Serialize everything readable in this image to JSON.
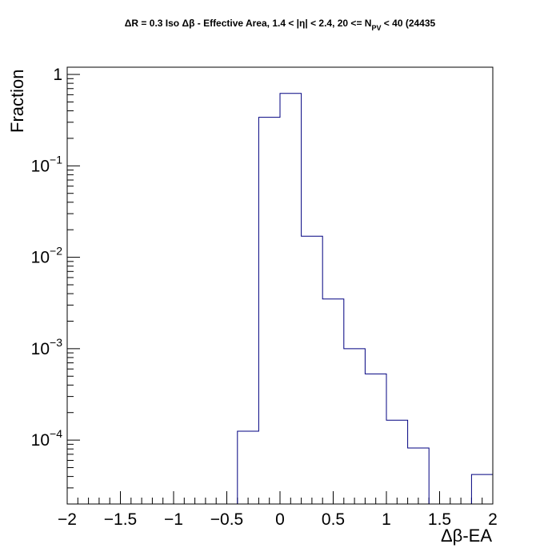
{
  "chart_data": {
    "type": "histogram",
    "title": "ΔR = 0.3 Iso Δβ - Effective Area, 1.4 < |η| < 2.4, 20 <= N",
    "title_sub": "PV",
    "title_tail": " < 40 (24435",
    "xlabel": "Δβ-EA",
    "ylabel": "Fraction",
    "xlim": [
      -2,
      2
    ],
    "ylim": [
      2e-05,
      1.2
    ],
    "y_scale": "log",
    "grid": false,
    "legend": "none",
    "line_color": "#000080",
    "x_ticks": [
      -2,
      -1.5,
      -1,
      -0.5,
      0,
      0.5,
      1,
      1.5,
      2
    ],
    "x_tick_labels": [
      "−2",
      "−1.5",
      "−1",
      "−0.5",
      "0",
      "0.5",
      "1",
      "1.5",
      "2"
    ],
    "y_ticks": [
      {
        "value": 1,
        "base": "1",
        "exp": ""
      },
      {
        "value": 0.1,
        "base": "10",
        "exp": "−1"
      },
      {
        "value": 0.01,
        "base": "10",
        "exp": "−2"
      },
      {
        "value": 0.001,
        "base": "10",
        "exp": "−3"
      },
      {
        "value": 0.0001,
        "base": "10",
        "exp": "−4"
      }
    ],
    "bins": [
      {
        "x0": -0.4,
        "x1": -0.2,
        "y": 0.000125
      },
      {
        "x0": -0.2,
        "x1": 0.0,
        "y": 0.34
      },
      {
        "x0": 0.0,
        "x1": 0.2,
        "y": 0.62
      },
      {
        "x0": 0.2,
        "x1": 0.4,
        "y": 0.017
      },
      {
        "x0": 0.4,
        "x1": 0.6,
        "y": 0.0035
      },
      {
        "x0": 0.6,
        "x1": 0.8,
        "y": 0.001
      },
      {
        "x0": 0.8,
        "x1": 1.0,
        "y": 0.00053
      },
      {
        "x0": 1.0,
        "x1": 1.2,
        "y": 0.000165
      },
      {
        "x0": 1.2,
        "x1": 1.4,
        "y": 8.2e-05
      },
      {
        "x0": 1.8,
        "x1": 2.0,
        "y": 4.2e-05
      }
    ]
  }
}
